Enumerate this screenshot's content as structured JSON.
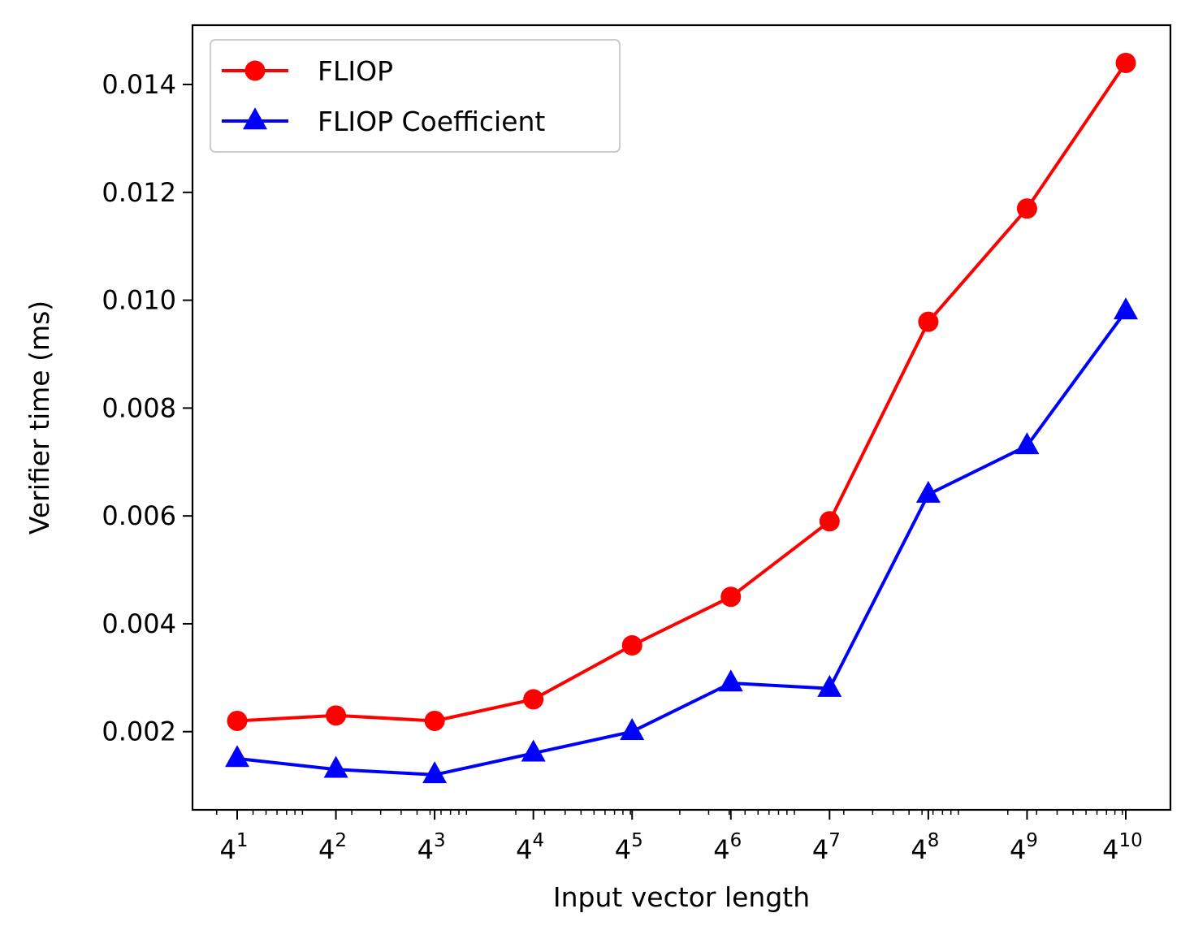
{
  "chart_data": {
    "type": "line",
    "title": "",
    "xlabel": "Input vector length",
    "ylabel": "Verifier time (ms)",
    "x_scale": "log",
    "x": [
      4,
      16,
      64,
      256,
      1024,
      4096,
      16384,
      65536,
      262144,
      1048576
    ],
    "x_tick_labels": [
      {
        "base": "4",
        "exp": "1"
      },
      {
        "base": "4",
        "exp": "2"
      },
      {
        "base": "4",
        "exp": "3"
      },
      {
        "base": "4",
        "exp": "4"
      },
      {
        "base": "4",
        "exp": "5"
      },
      {
        "base": "4",
        "exp": "6"
      },
      {
        "base": "4",
        "exp": "7"
      },
      {
        "base": "4",
        "exp": "8"
      },
      {
        "base": "4",
        "exp": "9"
      },
      {
        "base": "4",
        "exp": "10"
      }
    ],
    "y_ticks": [
      0.002,
      0.004,
      0.006,
      0.008,
      0.01,
      0.012,
      0.014
    ],
    "y_tick_labels": [
      "0.002",
      "0.004",
      "0.006",
      "0.008",
      "0.010",
      "0.012",
      "0.014"
    ],
    "ylim": [
      0.00055,
      0.0151
    ],
    "grid": false,
    "legend_position": "top-left",
    "series": [
      {
        "name": "FLIOP",
        "color": "#ff0000",
        "marker": "circle",
        "values": [
          0.0022,
          0.0023,
          0.0022,
          0.0026,
          0.0036,
          0.0045,
          0.0059,
          0.0096,
          0.0117,
          0.0144
        ]
      },
      {
        "name": "FLIOP Coefficient",
        "color": "#0000ff",
        "marker": "triangle",
        "values": [
          0.0015,
          0.0013,
          0.0012,
          0.0016,
          0.002,
          0.0029,
          0.0028,
          0.0064,
          0.0073,
          0.0098
        ]
      }
    ]
  }
}
